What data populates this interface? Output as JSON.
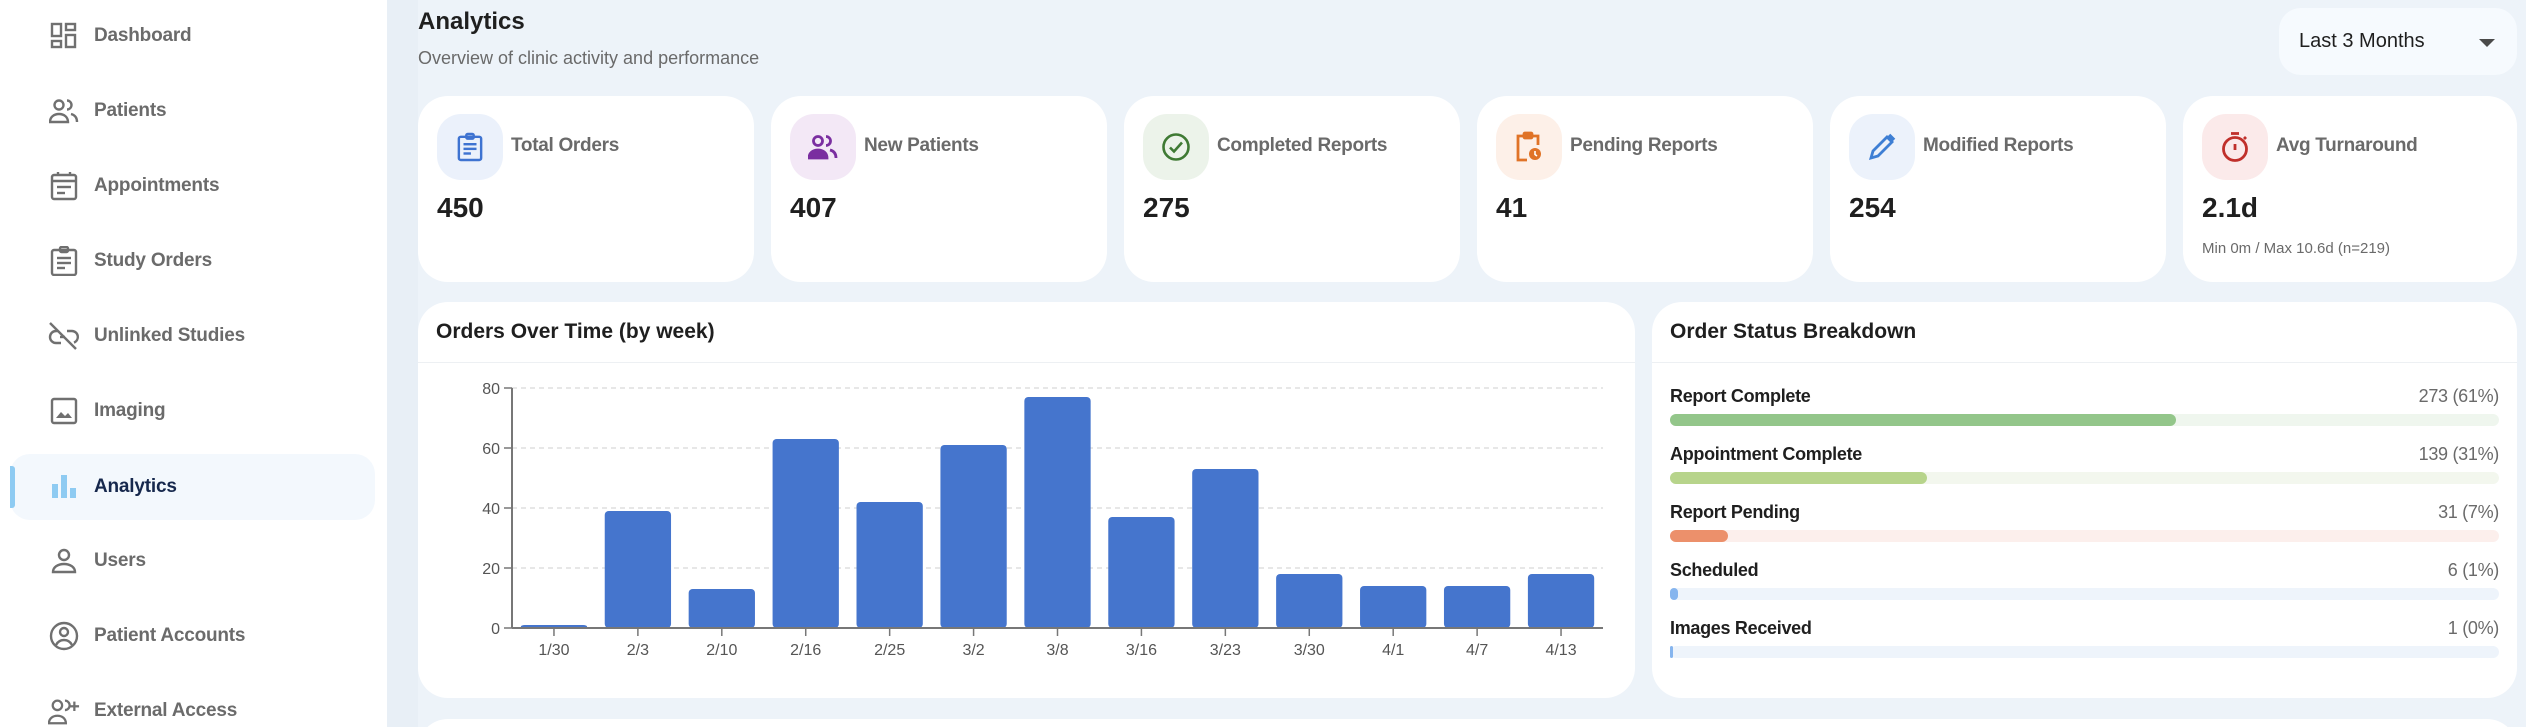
{
  "sidebar": {
    "items": [
      {
        "label": "Dashboard",
        "icon": "dashboard-icon",
        "active": false
      },
      {
        "label": "Patients",
        "icon": "patients-icon",
        "active": false
      },
      {
        "label": "Appointments",
        "icon": "calendar-icon",
        "active": false
      },
      {
        "label": "Study Orders",
        "icon": "clipboard-icon",
        "active": false
      },
      {
        "label": "Unlinked Studies",
        "icon": "link-off-icon",
        "active": false
      },
      {
        "label": "Imaging",
        "icon": "image-icon",
        "active": false
      },
      {
        "label": "Analytics",
        "icon": "bar-chart-icon",
        "active": true
      },
      {
        "label": "Users",
        "icon": "user-icon",
        "active": false
      },
      {
        "label": "Patient Accounts",
        "icon": "account-circle-icon",
        "active": false
      },
      {
        "label": "External Access",
        "icon": "add-user-icon",
        "active": false
      }
    ]
  },
  "header": {
    "title": "Analytics",
    "subtitle": "Overview of clinic activity and performance",
    "range_select": {
      "value": "Last 3 Months"
    }
  },
  "stats": [
    {
      "label": "Total Orders",
      "value": "450",
      "icon": "clipboard-icon",
      "color": "#3e73d1",
      "bg": "#ebf1fb"
    },
    {
      "label": "New Patients",
      "value": "407",
      "icon": "patients-icon",
      "color": "#7a2ea0",
      "bg": "#f3e8f6"
    },
    {
      "label": "Completed Reports",
      "value": "275",
      "icon": "check-circle-icon",
      "color": "#3f7a34",
      "bg": "#ecf3ea"
    },
    {
      "label": "Pending Reports",
      "value": "41",
      "icon": "pending-clipboard-icon",
      "color": "#e07327",
      "bg": "#fdf0e8"
    },
    {
      "label": "Modified Reports",
      "value": "254",
      "icon": "pencil-icon",
      "color": "#3e7fd4",
      "bg": "#ecf2fb"
    },
    {
      "label": "Avg Turnaround",
      "value": "2.1d",
      "sub": "Min 0m / Max 10.6d (n=219)",
      "icon": "timer-icon",
      "color": "#c0302b",
      "bg": "#fbeaea"
    }
  ],
  "orders_chart": {
    "title": "Orders Over Time (by week)"
  },
  "chart_data": {
    "type": "bar",
    "title": "Orders Over Time (by week)",
    "xlabel": "",
    "ylabel": "",
    "categories": [
      "1/30",
      "2/3",
      "2/10",
      "2/16",
      "2/25",
      "3/2",
      "3/8",
      "3/16",
      "3/23",
      "3/30",
      "4/1",
      "4/7",
      "4/13"
    ],
    "values": [
      1,
      39,
      13,
      63,
      42,
      61,
      77,
      37,
      53,
      18,
      14,
      14,
      18
    ],
    "ylim": [
      0,
      80
    ],
    "yticks": [
      0,
      20,
      40,
      60,
      80
    ],
    "grid": true,
    "bar_color": "#4575cd"
  },
  "breakdown": {
    "title": "Order Status Breakdown",
    "rows": [
      {
        "label": "Report Complete",
        "value": "273 (61%)",
        "pct": 61,
        "color": "#93c68a",
        "track": "#eff6ee"
      },
      {
        "label": "Appointment Complete",
        "value": "139 (31%)",
        "pct": 31,
        "color": "#b7d48b",
        "track": "#f3f7ee"
      },
      {
        "label": "Report Pending",
        "value": "31 (7%)",
        "pct": 7,
        "color": "#ec906b",
        "track": "#fcefec"
      },
      {
        "label": "Scheduled",
        "value": "6 (1%)",
        "pct": 1,
        "color": "#86b5ee",
        "track": "#eef4fb"
      },
      {
        "label": "Images Received",
        "value": "1 (0%)",
        "pct": 0.2,
        "color": "#86b5ee",
        "track": "#eef4fb"
      }
    ]
  }
}
